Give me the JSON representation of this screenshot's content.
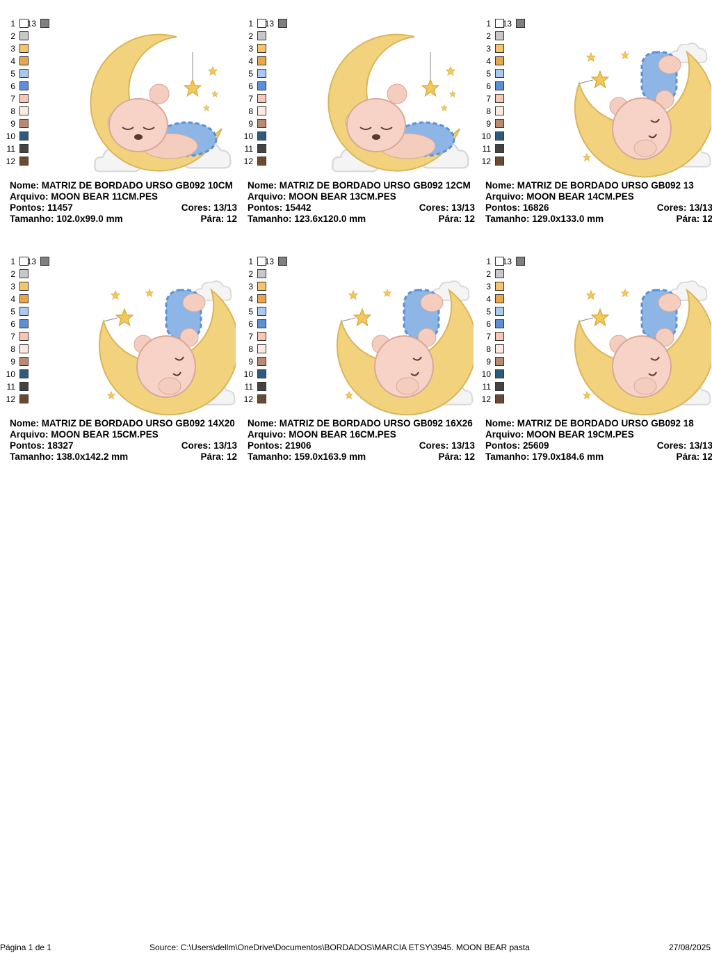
{
  "palette": [
    {
      "label": "1",
      "color": "#ffffff"
    },
    {
      "label": "2",
      "color": "#c8c8c8"
    },
    {
      "label": "3",
      "color": "#f6c46c"
    },
    {
      "label": "4",
      "color": "#e9a54c"
    },
    {
      "label": "5",
      "color": "#aac9ef"
    },
    {
      "label": "6",
      "color": "#5b8fd6"
    },
    {
      "label": "7",
      "color": "#f7c6b4"
    },
    {
      "label": "8",
      "color": "#fce9e2"
    },
    {
      "label": "9",
      "color": "#b98a72"
    },
    {
      "label": "10",
      "color": "#2d5b80"
    },
    {
      "label": "11",
      "color": "#434343"
    },
    {
      "label": "12",
      "color": "#6b4a31"
    },
    {
      "label": "13",
      "color": "#808080"
    }
  ],
  "cards": [
    {
      "name": "Nome: MATRIZ DE BORDADO URSO GB092 10CM",
      "file": "Arquivo: MOON BEAR 11CM.PES",
      "stitches": "Pontos: 11457",
      "colors": "Cores: 13/13",
      "size": "Tamanho: 102.0x99.0 mm",
      "stops": "Pára: 12"
    },
    {
      "name": "Nome: MATRIZ DE BORDADO URSO GB092 12CM",
      "file": "Arquivo: MOON BEAR 13CM.PES",
      "stitches": "Pontos: 15442",
      "colors": "Cores: 13/13",
      "size": "Tamanho: 123.6x120.0 mm",
      "stops": "Pára: 12"
    },
    {
      "name": "Nome: MATRIZ DE BORDADO URSO GB092 13",
      "file": "Arquivo: MOON BEAR 14CM.PES",
      "stitches": "Pontos: 16826",
      "colors": "Cores: 13/13",
      "size": "Tamanho: 129.0x133.0 mm",
      "stops": "Pára: 12"
    },
    {
      "name": "Nome: MATRIZ DE BORDADO URSO GB092 14X20",
      "file": "Arquivo: MOON BEAR 15CM.PES",
      "stitches": "Pontos: 18327",
      "colors": "Cores: 13/13",
      "size": "Tamanho: 138.0x142.2 mm",
      "stops": "Pára: 12"
    },
    {
      "name": "Nome: MATRIZ DE BORDADO URSO GB092 16X26",
      "file": "Arquivo: MOON BEAR 16CM.PES",
      "stitches": "Pontos: 21906",
      "colors": "Cores: 13/13",
      "size": "Tamanho: 159.0x163.9 mm",
      "stops": "Pára: 12"
    },
    {
      "name": "Nome: MATRIZ DE BORDADO URSO GB092 18",
      "file": "Arquivo: MOON BEAR 19CM.PES",
      "stitches": "Pontos: 25609",
      "colors": "Cores: 13/13",
      "size": "Tamanho: 179.0x184.6 mm",
      "stops": "Pára: 12"
    }
  ],
  "footer": {
    "page": "Página 1 de 1",
    "source": "Source: C:\\Users\\dellm\\OneDrive\\Documentos\\BORDADOS\\MARCIA ETSY\\3945. MOON BEAR pasta",
    "date": "27/08/2025"
  }
}
